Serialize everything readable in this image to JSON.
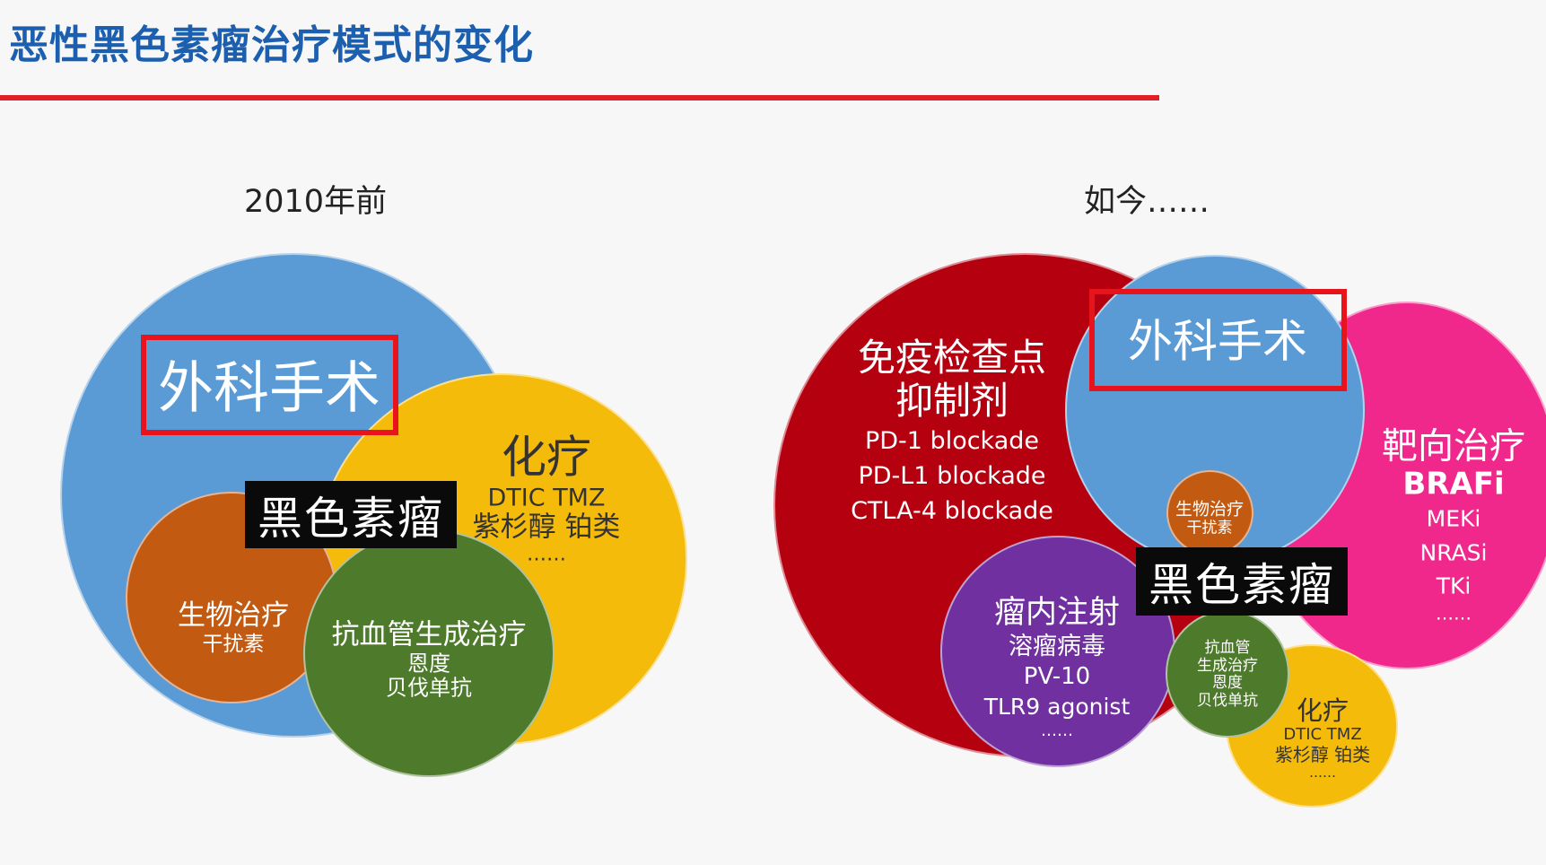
{
  "slide": {
    "title": "恶性黑色素瘤治疗模式的变化"
  },
  "before": {
    "heading": "2010年前",
    "surgery": "外科手术",
    "chemo": {
      "title": "化疗",
      "l1": "DTIC TMZ",
      "l2": "紫杉醇 铂类",
      "l3": "……"
    },
    "center": "黑色素瘤",
    "bio": {
      "title": "生物治疗",
      "l1": "干扰素"
    },
    "antiangio": {
      "title": "抗血管生成治疗",
      "l1": "恩度",
      "l2": "贝伐单抗"
    }
  },
  "now": {
    "heading": "如今……",
    "checkpoint": {
      "t1": "免疫检查点",
      "t2": "抑制剂",
      "l1": "PD-1 blockade",
      "l2": "PD-L1 blockade",
      "l3": "CTLA-4 blockade"
    },
    "surgery": "外科手术",
    "targeted": {
      "title": "靶向治疗",
      "l1": "BRAFi",
      "l2": "MEKi",
      "l3": "NRASi",
      "l4": "TKi",
      "l5": "……"
    },
    "bio": {
      "l1": "生物治疗",
      "l2": "干扰素"
    },
    "center": "黑色素瘤",
    "intratumoral": {
      "title": "瘤内注射",
      "l1": "溶瘤病毒",
      "l2": "PV-10",
      "l3": "TLR9 agonist",
      "l4": "……"
    },
    "antiangio": {
      "l1": "抗血管",
      "l2": "生成治疗",
      "l3": "恩度",
      "l4": "贝伐单抗"
    },
    "chemo": {
      "title": "化疗",
      "l1": "DTIC TMZ",
      "l2": "紫杉醇 铂类",
      "l3": "……"
    }
  },
  "colors": {
    "title_blue": "#1c5fae",
    "rule_red": "#e11f26",
    "surgery_blue": "#5b9bd5",
    "chemo_yellow": "#f5bb0b",
    "bio_orange": "#c35a12",
    "antiangio_green": "#4e7a2c",
    "checkpoint_red": "#b50010",
    "targeted_pink": "#f0288c",
    "intratumoral_purple": "#7030a0",
    "highlight_red": "#e8141b"
  }
}
